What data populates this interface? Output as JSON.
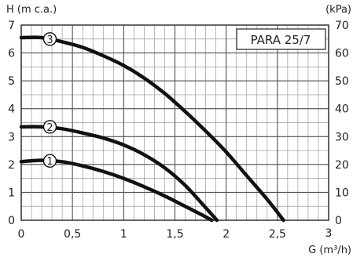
{
  "chart_data": {
    "type": "line",
    "model_label": "PARA 25/7",
    "ylabel": "H (m c.a.)",
    "ylabel_right": "(kPa)",
    "xlabel": "G (m³/h)",
    "xlim": [
      0,
      3
    ],
    "ylim": [
      0,
      7
    ],
    "ylim_right": [
      0,
      70
    ],
    "x_ticks": [
      {
        "value": 0,
        "label": "0"
      },
      {
        "value": 0.5,
        "label": "0,5"
      },
      {
        "value": 1,
        "label": "1"
      },
      {
        "value": 1.5,
        "label": "1,5"
      },
      {
        "value": 2,
        "label": "2"
      },
      {
        "value": 2.5,
        "label": "2,5"
      },
      {
        "value": 3,
        "label": "3"
      }
    ],
    "y_ticks": [
      {
        "value": 0,
        "label": "0"
      },
      {
        "value": 1,
        "label": "1"
      },
      {
        "value": 2,
        "label": "2"
      },
      {
        "value": 3,
        "label": "3"
      },
      {
        "value": 4,
        "label": "4"
      },
      {
        "value": 5,
        "label": "5"
      },
      {
        "value": 6,
        "label": "6"
      },
      {
        "value": 7,
        "label": "7"
      }
    ],
    "y_ticks_right": [
      {
        "value": 0,
        "label": "0"
      },
      {
        "value": 10,
        "label": "10"
      },
      {
        "value": 20,
        "label": "20"
      },
      {
        "value": 30,
        "label": "30"
      },
      {
        "value": 40,
        "label": "40"
      },
      {
        "value": 50,
        "label": "50"
      },
      {
        "value": 60,
        "label": "60"
      },
      {
        "value": 70,
        "label": "70"
      }
    ],
    "grid": true,
    "grid_minor_x": 0.1,
    "grid_minor_y": 0.5,
    "series": [
      {
        "name": "1",
        "x": [
          0,
          0.2,
          0.4,
          0.6,
          0.8,
          1.0,
          1.2,
          1.4,
          1.6,
          1.76,
          1.86
        ],
        "y": [
          2.1,
          2.15,
          2.1,
          1.95,
          1.75,
          1.5,
          1.2,
          0.87,
          0.5,
          0.2,
          0
        ]
      },
      {
        "name": "2",
        "x": [
          0,
          0.2,
          0.4,
          0.6,
          0.8,
          1.0,
          1.2,
          1.4,
          1.6,
          1.8,
          1.91
        ],
        "y": [
          3.35,
          3.35,
          3.28,
          3.13,
          2.95,
          2.7,
          2.35,
          1.88,
          1.25,
          0.45,
          0
        ]
      },
      {
        "name": "3",
        "x": [
          0,
          0.2,
          0.4,
          0.6,
          0.8,
          1.0,
          1.2,
          1.4,
          1.6,
          1.8,
          2.0,
          2.2,
          2.4,
          2.56
        ],
        "y": [
          6.55,
          6.55,
          6.4,
          6.2,
          5.9,
          5.55,
          5.1,
          4.55,
          3.9,
          3.2,
          2.45,
          1.6,
          0.75,
          0
        ]
      }
    ],
    "curve_labels": [
      {
        "text": "1",
        "x": 0.28,
        "y": 2.13
      },
      {
        "text": "2",
        "x": 0.28,
        "y": 3.35
      },
      {
        "text": "3",
        "x": 0.28,
        "y": 6.5
      }
    ]
  }
}
